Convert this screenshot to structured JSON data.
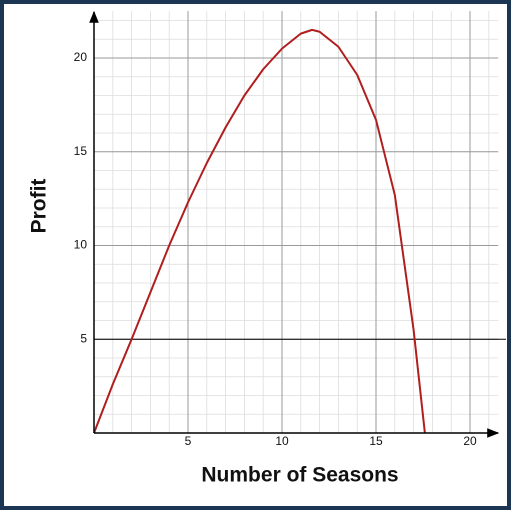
{
  "chart_data": {
    "type": "line",
    "x_label": "Number of Seasons",
    "y_label": "Profit",
    "x": [
      0,
      1,
      2,
      3,
      4,
      5,
      6,
      7,
      8,
      9,
      10,
      11,
      11.6,
      12,
      13,
      14,
      15,
      16,
      17,
      17.6
    ],
    "series": [
      {
        "name": "Profit",
        "color": "#b01e1e",
        "values": [
          0,
          2.6,
          5.0,
          7.5,
          10.0,
          12.3,
          14.4,
          16.3,
          18.0,
          19.4,
          20.5,
          21.3,
          21.5,
          21.4,
          20.6,
          19.1,
          16.7,
          12.7,
          5.5,
          0
        ]
      }
    ],
    "xlim": [
      0,
      21.5
    ],
    "ylim": [
      0,
      22.5
    ],
    "xticks": [
      5,
      10,
      15,
      20
    ],
    "yticks": [
      5,
      10,
      15,
      20
    ],
    "grid": true,
    "minor_grid_step": 1,
    "reference_line": 5
  }
}
